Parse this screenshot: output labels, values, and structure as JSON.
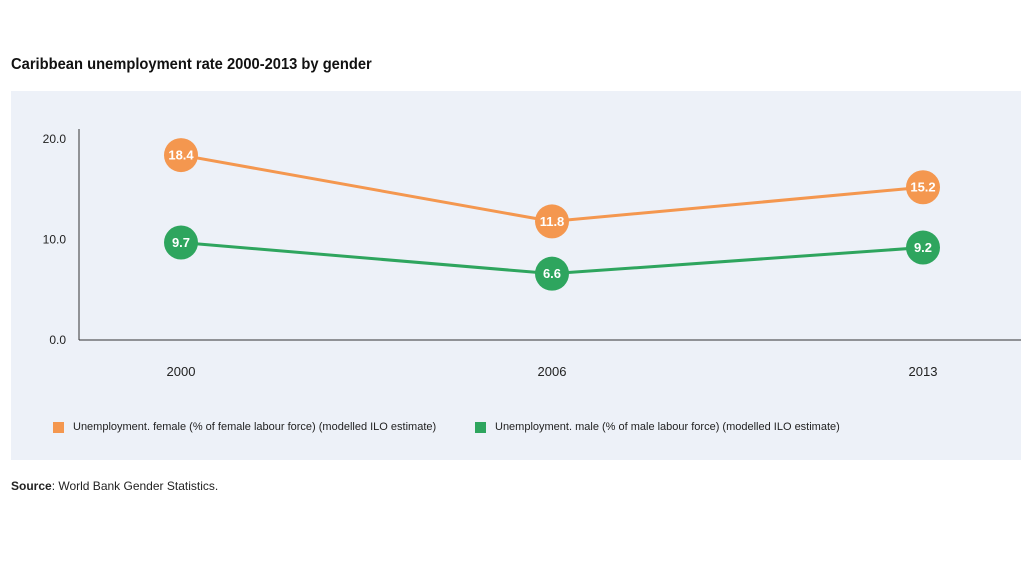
{
  "title": "Caribbean unemployment rate 2000-2013 by gender",
  "source": {
    "label": "Source",
    "text": ": World Bank Gender Statistics."
  },
  "colors": {
    "female": "#f4974f",
    "male": "#2ea55e",
    "panel_bg": "#edf1f8"
  },
  "chart_data": {
    "type": "line",
    "title": "Caribbean unemployment rate 2000-2013 by gender",
    "x": [
      "2000",
      "2006",
      "2013"
    ],
    "ylim": [
      0,
      20
    ],
    "yticks": [
      "0.0",
      "10.0",
      "20.0"
    ],
    "grid": false,
    "legend_position": "bottom",
    "series": [
      {
        "name": "Unemployment. female (% of female labour force) (modelled ILO estimate)",
        "color": "#f4974f",
        "values": [
          18.4,
          11.8,
          15.2
        ],
        "labels": [
          "18.4",
          "11.8",
          "15.2"
        ]
      },
      {
        "name": "Unemployment. male (% of male labour force) (modelled ILO estimate)",
        "color": "#2ea55e",
        "values": [
          9.7,
          6.6,
          9.2
        ],
        "labels": [
          "9.7",
          "6.6",
          "9.2"
        ]
      }
    ]
  }
}
